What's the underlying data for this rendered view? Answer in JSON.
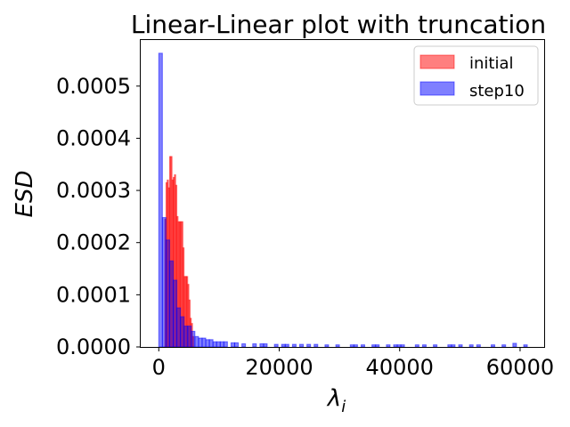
{
  "chart_data": {
    "type": "histogram",
    "title": "Linear-Linear plot with truncation",
    "xlabel": "λ",
    "xlabel_sub": "i",
    "ylabel": "ESD",
    "xlim": [
      -3000,
      64000
    ],
    "ylim": [
      0,
      0.00059
    ],
    "xticks": [
      0,
      20000,
      40000,
      60000
    ],
    "xtick_labels": [
      "0",
      "20000",
      "40000",
      "60000"
    ],
    "yticks": [
      0,
      0.0001,
      0.0002,
      0.0003,
      0.0004,
      0.0005
    ],
    "ytick_labels": [
      "0.0000",
      "0.0001",
      "0.0002",
      "0.0003",
      "0.0004",
      "0.0005"
    ],
    "legend_position": "top-right",
    "grid": false,
    "series": [
      {
        "name": "initial",
        "color": "#ff0000",
        "alpha": 0.5,
        "bins": [
          [
            1000,
            1200,
            0.000245
          ],
          [
            1200,
            1400,
            0.000315
          ],
          [
            1400,
            1600,
            0.00032
          ],
          [
            1600,
            1800,
            0.000305
          ],
          [
            1800,
            2000,
            0.000365
          ],
          [
            2000,
            2200,
            0.000365
          ],
          [
            2200,
            2400,
            0.00032
          ],
          [
            2400,
            2600,
            0.000325
          ],
          [
            2600,
            2800,
            0.00033
          ],
          [
            2800,
            3000,
            0.00031
          ],
          [
            3000,
            3200,
            0.00025
          ],
          [
            3200,
            3400,
            0.00024
          ],
          [
            3400,
            3600,
            0.00024
          ],
          [
            3600,
            3800,
            0.00024
          ],
          [
            3800,
            4000,
            0.00024
          ],
          [
            4000,
            4200,
            0.00019
          ],
          [
            4200,
            4400,
            0.000135
          ],
          [
            4400,
            4600,
            0.000135
          ],
          [
            4600,
            4800,
            0.000135
          ],
          [
            4800,
            5000,
            0.00012
          ],
          [
            5000,
            5200,
            9e-05
          ],
          [
            5200,
            5400,
            5.5e-05
          ],
          [
            5400,
            5600,
            4.5e-05
          ],
          [
            5600,
            5800,
            2e-05
          ]
        ]
      },
      {
        "name": "step10",
        "color": "#0000ff",
        "alpha": 0.5,
        "bins": [
          [
            0,
            600,
            0.000563
          ],
          [
            600,
            1200,
            0.000248
          ],
          [
            1200,
            1800,
            0.000205
          ],
          [
            1800,
            2400,
            0.000165
          ],
          [
            2400,
            3000,
            0.000128
          ],
          [
            3000,
            3600,
            7.5e-05
          ],
          [
            3600,
            4200,
            5.8e-05
          ],
          [
            4200,
            4800,
            4e-05
          ],
          [
            4800,
            5400,
            4e-05
          ],
          [
            5400,
            6000,
            3e-05
          ],
          [
            6000,
            6600,
            2e-05
          ],
          [
            6600,
            7200,
            1.7e-05
          ],
          [
            7200,
            7800,
            1.7e-05
          ],
          [
            7800,
            8400,
            1.4e-05
          ],
          [
            8400,
            9000,
            1.4e-05
          ],
          [
            9000,
            9600,
            1e-05
          ],
          [
            9600,
            10200,
            1e-05
          ],
          [
            10200,
            10800,
            1e-05
          ],
          [
            10800,
            11400,
            1e-05
          ],
          [
            12000,
            12600,
            8e-06
          ],
          [
            12600,
            13200,
            8e-06
          ],
          [
            13800,
            14400,
            6e-06
          ],
          [
            15600,
            16200,
            6e-06
          ],
          [
            16800,
            17400,
            6e-06
          ],
          [
            17400,
            18000,
            6e-06
          ],
          [
            19200,
            19800,
            5e-06
          ],
          [
            20400,
            21000,
            5e-06
          ],
          [
            21000,
            21600,
            5e-06
          ],
          [
            22200,
            22800,
            5e-06
          ],
          [
            23400,
            24000,
            5e-06
          ],
          [
            24600,
            25200,
            5e-06
          ],
          [
            25800,
            26400,
            5e-06
          ],
          [
            27600,
            28200,
            4e-06
          ],
          [
            29400,
            30000,
            4e-06
          ],
          [
            31800,
            32400,
            4e-06
          ],
          [
            32400,
            33000,
            4e-06
          ],
          [
            33600,
            34200,
            4e-06
          ],
          [
            35400,
            36000,
            4e-06
          ],
          [
            36000,
            36600,
            4e-06
          ],
          [
            37800,
            38400,
            4e-06
          ],
          [
            39000,
            39600,
            4e-06
          ],
          [
            39600,
            40200,
            4e-06
          ],
          [
            40200,
            40800,
            4e-06
          ],
          [
            42600,
            43200,
            4e-06
          ],
          [
            43800,
            44400,
            4e-06
          ],
          [
            45600,
            46200,
            4e-06
          ],
          [
            48000,
            48600,
            4e-06
          ],
          [
            48600,
            49200,
            4e-06
          ],
          [
            49800,
            50400,
            4e-06
          ],
          [
            51600,
            52200,
            4e-06
          ],
          [
            52800,
            53400,
            4e-06
          ],
          [
            55200,
            55800,
            4e-06
          ],
          [
            57000,
            57600,
            4e-06
          ],
          [
            58800,
            59400,
            7e-06
          ],
          [
            60600,
            61200,
            4e-06
          ]
        ]
      }
    ]
  }
}
